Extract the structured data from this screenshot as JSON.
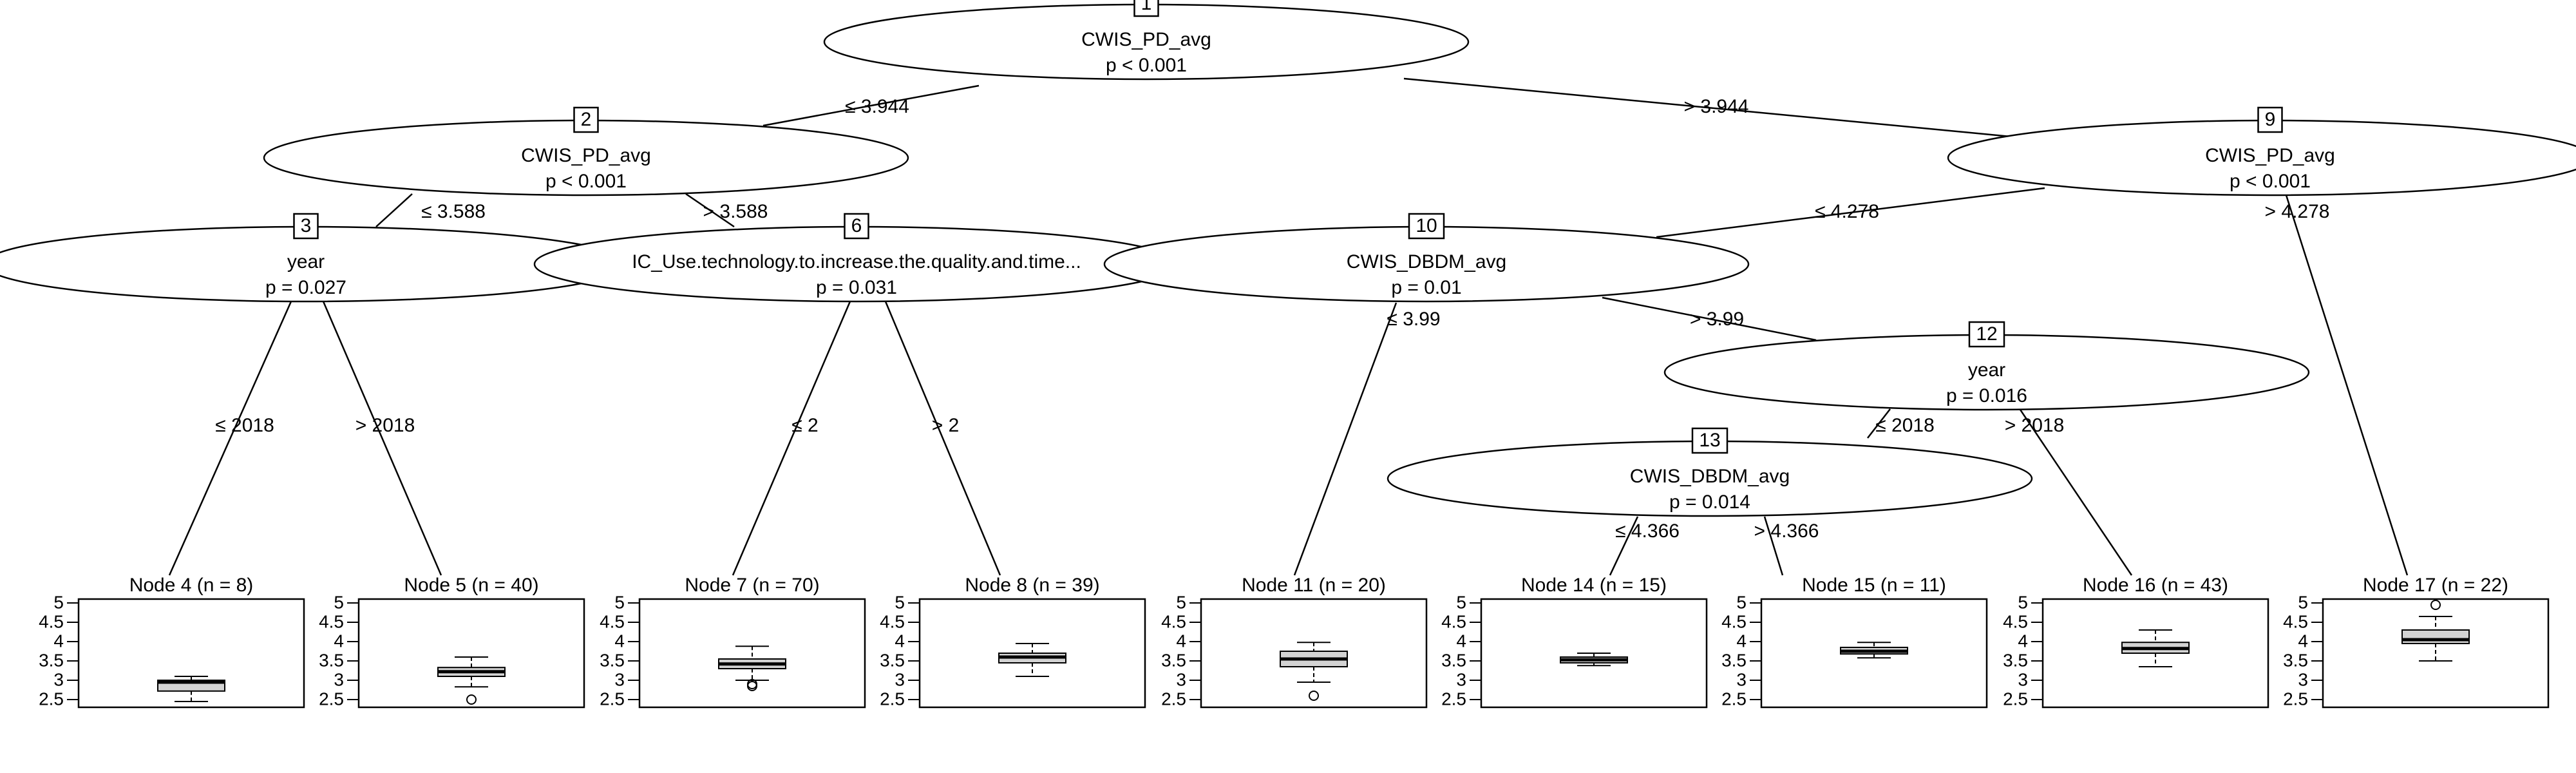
{
  "tree": {
    "inner_nodes": [
      {
        "id": "1",
        "var": "CWIS_PD_avg",
        "p": "p < 0.001"
      },
      {
        "id": "2",
        "var": "CWIS_PD_avg",
        "p": "p < 0.001"
      },
      {
        "id": "3",
        "var": "year",
        "p": "p = 0.027"
      },
      {
        "id": "6",
        "var": "IC_Use.technology.to.increase.the.quality.and.time...",
        "p": "p = 0.031"
      },
      {
        "id": "9",
        "var": "CWIS_PD_avg",
        "p": "p < 0.001"
      },
      {
        "id": "10",
        "var": "CWIS_DBDM_avg",
        "p": "p = 0.01"
      },
      {
        "id": "12",
        "var": "year",
        "p": "p = 0.016"
      },
      {
        "id": "13",
        "var": "CWIS_DBDM_avg",
        "p": "p = 0.014"
      }
    ],
    "edges": [
      {
        "from": "1",
        "to": "2",
        "label": "≤ 3.944"
      },
      {
        "from": "1",
        "to": "9",
        "label": "> 3.944"
      },
      {
        "from": "2",
        "to": "3",
        "label": "≤ 3.588"
      },
      {
        "from": "2",
        "to": "6",
        "label": "> 3.588"
      },
      {
        "from": "3",
        "to": "4",
        "label": "≤ 2018"
      },
      {
        "from": "3",
        "to": "5",
        "label": "> 2018"
      },
      {
        "from": "6",
        "to": "7",
        "label": "≤ 2"
      },
      {
        "from": "6",
        "to": "8",
        "label": "> 2"
      },
      {
        "from": "9",
        "to": "10",
        "label": "≤ 4.278"
      },
      {
        "from": "9",
        "to": "17",
        "label": "> 4.278"
      },
      {
        "from": "10",
        "to": "11",
        "label": "≤ 3.99"
      },
      {
        "from": "10",
        "to": "12",
        "label": "> 3.99"
      },
      {
        "from": "12",
        "to": "13",
        "label": "≤ 2018"
      },
      {
        "from": "12",
        "to": "16",
        "label": "> 2018"
      },
      {
        "from": "13",
        "to": "14",
        "label": "≤ 4.366"
      },
      {
        "from": "13",
        "to": "15",
        "label": "> 4.366"
      }
    ],
    "terminal_nodes": [
      {
        "id": "4",
        "title": "Node 4 (n = 8)",
        "box": {
          "whisker_low": 2.45,
          "q1": 2.72,
          "median": 2.95,
          "q3": 3.0,
          "whisker_high": 3.1,
          "outliers": []
        }
      },
      {
        "id": "5",
        "title": "Node 5 (n = 40)",
        "box": {
          "whisker_low": 2.83,
          "q1": 3.1,
          "median": 3.22,
          "q3": 3.33,
          "whisker_high": 3.6,
          "outliers": [
            2.5
          ]
        }
      },
      {
        "id": "7",
        "title": "Node 7 (n = 70)",
        "box": {
          "whisker_low": 3.0,
          "q1": 3.3,
          "median": 3.42,
          "q3": 3.55,
          "whisker_high": 3.88,
          "outliers": [
            2.85,
            2.9
          ]
        }
      },
      {
        "id": "8",
        "title": "Node 8 (n = 39)",
        "box": {
          "whisker_low": 3.1,
          "q1": 3.45,
          "median": 3.6,
          "q3": 3.7,
          "whisker_high": 3.95,
          "outliers": []
        }
      },
      {
        "id": "11",
        "title": "Node 11 (n = 20)",
        "box": {
          "whisker_low": 2.95,
          "q1": 3.35,
          "median": 3.55,
          "q3": 3.75,
          "whisker_high": 3.98,
          "outliers": [
            2.6
          ]
        }
      },
      {
        "id": "14",
        "title": "Node 14 (n = 15)",
        "box": {
          "whisker_low": 3.38,
          "q1": 3.45,
          "median": 3.53,
          "q3": 3.6,
          "whisker_high": 3.7,
          "outliers": []
        }
      },
      {
        "id": "15",
        "title": "Node 15 (n = 11)",
        "box": {
          "whisker_low": 3.58,
          "q1": 3.68,
          "median": 3.75,
          "q3": 3.85,
          "whisker_high": 3.98,
          "outliers": []
        }
      },
      {
        "id": "16",
        "title": "Node 16 (n = 43)",
        "box": {
          "whisker_low": 3.35,
          "q1": 3.7,
          "median": 3.82,
          "q3": 3.98,
          "whisker_high": 4.3,
          "outliers": []
        }
      },
      {
        "id": "17",
        "title": "Node 17 (n = 22)",
        "box": {
          "whisker_low": 3.5,
          "q1": 3.95,
          "median": 4.05,
          "q3": 4.3,
          "whisker_high": 4.65,
          "outliers": [
            4.95
          ]
        }
      }
    ],
    "y_axis": {
      "range": [
        2.3,
        5.1
      ],
      "ticks": [
        "5",
        "4.5",
        "4",
        "3.5",
        "3",
        "2.5"
      ]
    }
  }
}
